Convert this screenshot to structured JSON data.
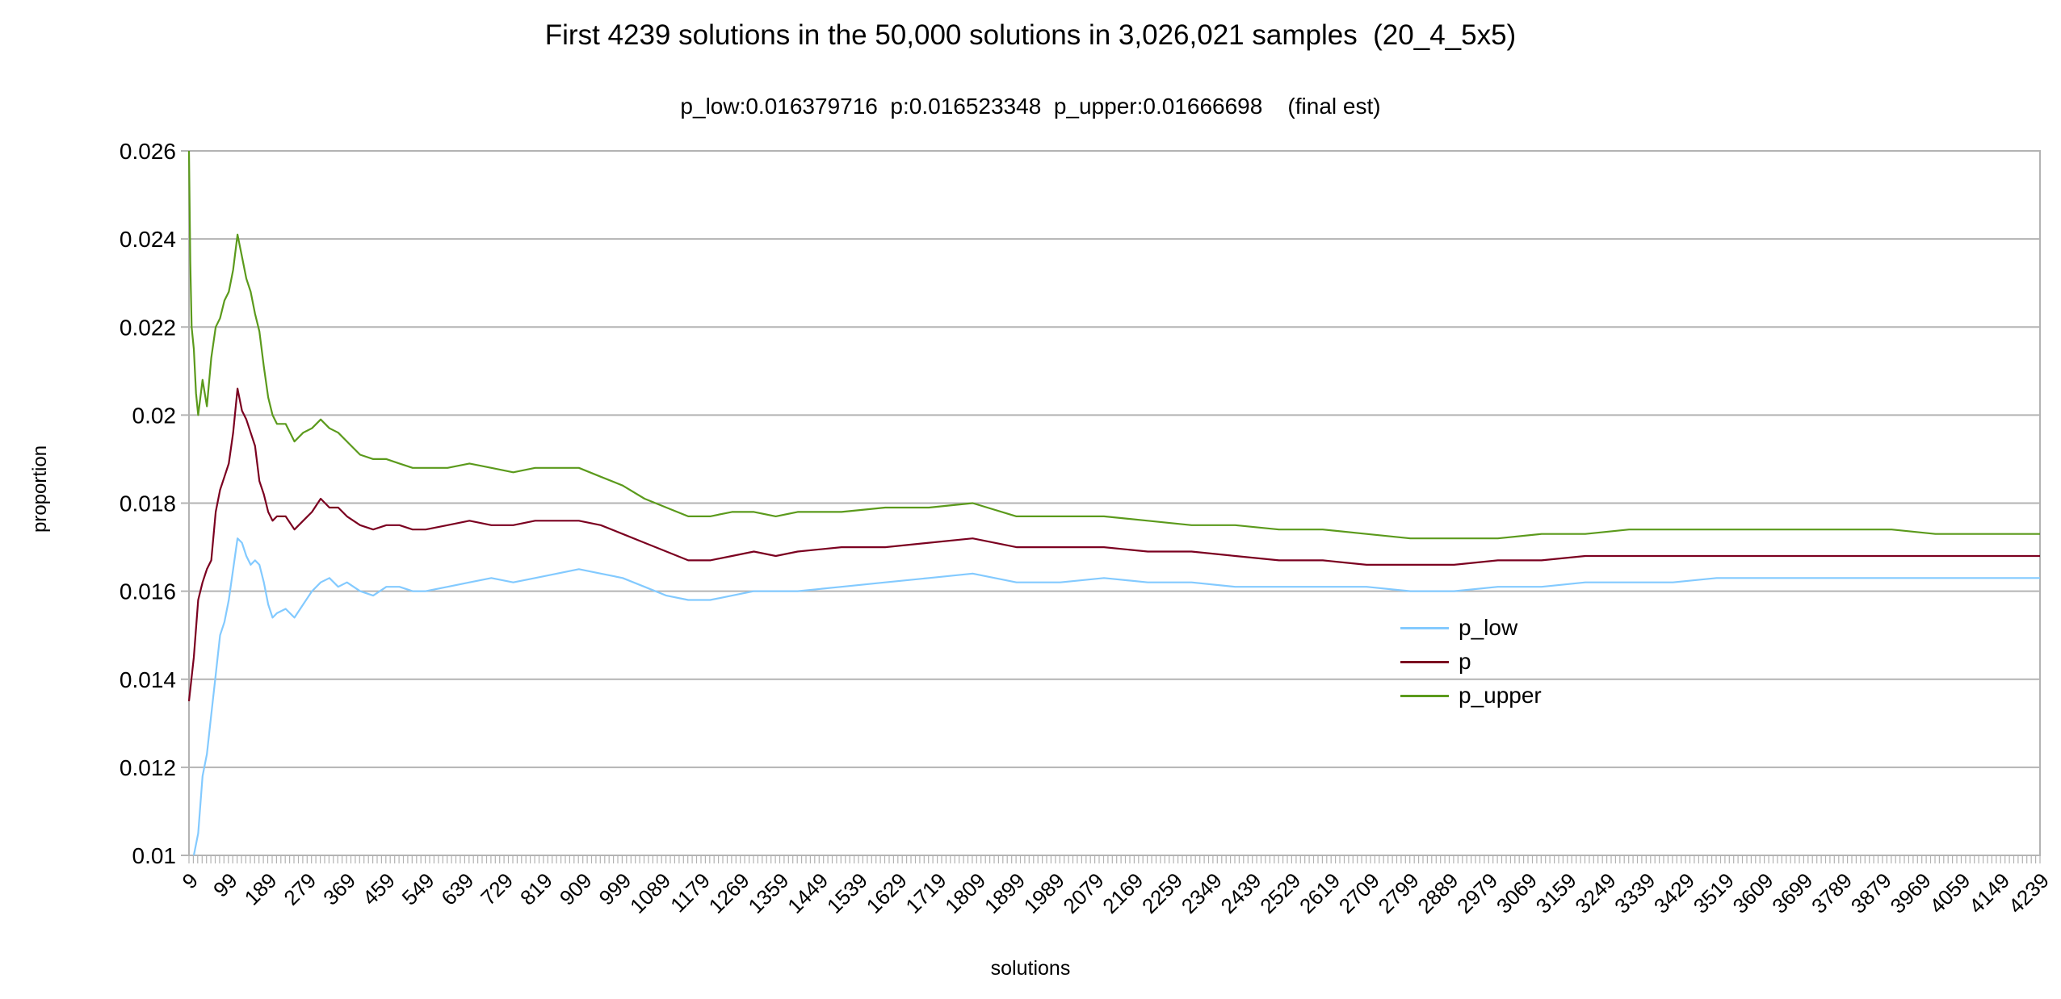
{
  "chart_data": {
    "type": "line",
    "title": "First 4239 solutions in the 50,000 solutions in 3,026,021 samples  (20_4_5x5)",
    "subtitle": "p_low:0.016379716  p:0.016523348  p_upper:0.01666698    (final est)",
    "xlabel": "solutions",
    "ylabel": "proportion",
    "ylim": [
      0.01,
      0.026
    ],
    "y_ticks": [
      "0.01",
      "0.012",
      "0.014",
      "0.016",
      "0.018",
      "0.02",
      "0.022",
      "0.024",
      "0.026"
    ],
    "xlim": [
      9,
      4239
    ],
    "x_tick_labels": [
      "9",
      "99",
      "189",
      "279",
      "369",
      "459",
      "549",
      "639",
      "729",
      "819",
      "909",
      "999",
      "1089",
      "1179",
      "1269",
      "1359",
      "1449",
      "1539",
      "1629",
      "1719",
      "1809",
      "1899",
      "1989",
      "2079",
      "2169",
      "2259",
      "2349",
      "2439",
      "2529",
      "2619",
      "2709",
      "2799",
      "2889",
      "2979",
      "3069",
      "3159",
      "3249",
      "3339",
      "3429",
      "3519",
      "3609",
      "3699",
      "3789",
      "3879",
      "3969",
      "4059",
      "4149",
      "4239"
    ],
    "grid": "horizontal",
    "legend_position": "right",
    "series": [
      {
        "name": "p_low",
        "color": "#83caff",
        "x": [
          20,
          30,
          40,
          50,
          60,
          70,
          80,
          90,
          100,
          110,
          120,
          130,
          140,
          150,
          160,
          170,
          180,
          190,
          200,
          210,
          230,
          250,
          270,
          290,
          310,
          330,
          350,
          370,
          400,
          430,
          460,
          490,
          520,
          550,
          600,
          650,
          700,
          750,
          800,
          850,
          900,
          950,
          1000,
          1050,
          1100,
          1150,
          1200,
          1250,
          1300,
          1350,
          1400,
          1500,
          1600,
          1700,
          1800,
          1900,
          2000,
          2100,
          2200,
          2300,
          2400,
          2500,
          2600,
          2700,
          2800,
          2900,
          3000,
          3100,
          3200,
          3300,
          3400,
          3500,
          3600,
          3700,
          3800,
          3900,
          4000,
          4100,
          4239
        ],
        "y": [
          0.01,
          0.0105,
          0.0118,
          0.0123,
          0.0132,
          0.0141,
          0.015,
          0.0153,
          0.0158,
          0.0165,
          0.0172,
          0.0171,
          0.0168,
          0.0166,
          0.0167,
          0.0166,
          0.0162,
          0.0157,
          0.0154,
          0.0155,
          0.0156,
          0.0154,
          0.0157,
          0.016,
          0.0162,
          0.0163,
          0.0161,
          0.0162,
          0.016,
          0.0159,
          0.0161,
          0.0161,
          0.016,
          0.016,
          0.0161,
          0.0162,
          0.0163,
          0.0162,
          0.0163,
          0.0164,
          0.0165,
          0.0164,
          0.0163,
          0.0161,
          0.0159,
          0.0158,
          0.0158,
          0.0159,
          0.016,
          0.016,
          0.016,
          0.0161,
          0.0162,
          0.0163,
          0.0164,
          0.0162,
          0.0162,
          0.0163,
          0.0162,
          0.0162,
          0.0161,
          0.0161,
          0.0161,
          0.0161,
          0.016,
          0.016,
          0.0161,
          0.0161,
          0.0162,
          0.0162,
          0.0162,
          0.0163,
          0.0163,
          0.0163,
          0.0163,
          0.0163,
          0.0163,
          0.0163,
          0.0163
        ]
      },
      {
        "name": "p",
        "color": "#7b0020",
        "x": [
          9,
          20,
          30,
          40,
          50,
          60,
          70,
          80,
          90,
          100,
          110,
          120,
          130,
          140,
          150,
          160,
          170,
          180,
          190,
          200,
          210,
          230,
          250,
          270,
          290,
          310,
          330,
          350,
          370,
          400,
          430,
          460,
          490,
          520,
          550,
          600,
          650,
          700,
          750,
          800,
          850,
          900,
          950,
          1000,
          1050,
          1100,
          1150,
          1200,
          1250,
          1300,
          1350,
          1400,
          1500,
          1600,
          1700,
          1800,
          1900,
          2000,
          2100,
          2200,
          2300,
          2400,
          2500,
          2600,
          2700,
          2800,
          2900,
          3000,
          3100,
          3200,
          3300,
          3400,
          3500,
          3600,
          3700,
          3800,
          3900,
          4000,
          4100,
          4239
        ],
        "y": [
          0.0135,
          0.0145,
          0.0158,
          0.0162,
          0.0165,
          0.0167,
          0.0178,
          0.0183,
          0.0186,
          0.0189,
          0.0196,
          0.0206,
          0.0201,
          0.0199,
          0.0196,
          0.0193,
          0.0185,
          0.0182,
          0.0178,
          0.0176,
          0.0177,
          0.0177,
          0.0174,
          0.0176,
          0.0178,
          0.0181,
          0.0179,
          0.0179,
          0.0177,
          0.0175,
          0.0174,
          0.0175,
          0.0175,
          0.0174,
          0.0174,
          0.0175,
          0.0176,
          0.0175,
          0.0175,
          0.0176,
          0.0176,
          0.0176,
          0.0175,
          0.0173,
          0.0171,
          0.0169,
          0.0167,
          0.0167,
          0.0168,
          0.0169,
          0.0168,
          0.0169,
          0.017,
          0.017,
          0.0171,
          0.0172,
          0.017,
          0.017,
          0.017,
          0.0169,
          0.0169,
          0.0168,
          0.0167,
          0.0167,
          0.0166,
          0.0166,
          0.0166,
          0.0167,
          0.0167,
          0.0168,
          0.0168,
          0.0168,
          0.0168,
          0.0168,
          0.0168,
          0.0168,
          0.0168,
          0.0168,
          0.0168,
          0.0168
        ]
      },
      {
        "name": "p_upper",
        "color": "#5b9a1c",
        "x": [
          9,
          12,
          15,
          20,
          25,
          30,
          40,
          50,
          60,
          70,
          80,
          90,
          100,
          110,
          120,
          130,
          140,
          150,
          160,
          170,
          180,
          190,
          200,
          210,
          230,
          250,
          270,
          290,
          310,
          330,
          350,
          370,
          400,
          430,
          460,
          490,
          520,
          550,
          600,
          650,
          700,
          750,
          800,
          850,
          900,
          950,
          1000,
          1050,
          1100,
          1150,
          1200,
          1250,
          1300,
          1350,
          1400,
          1500,
          1600,
          1700,
          1800,
          1900,
          2000,
          2100,
          2200,
          2300,
          2400,
          2500,
          2600,
          2700,
          2800,
          2900,
          3000,
          3100,
          3200,
          3300,
          3400,
          3500,
          3600,
          3700,
          3800,
          3900,
          4000,
          4100,
          4239
        ],
        "y": [
          0.026,
          0.0235,
          0.022,
          0.0215,
          0.0205,
          0.02,
          0.0208,
          0.0202,
          0.0213,
          0.022,
          0.0222,
          0.0226,
          0.0228,
          0.0233,
          0.0241,
          0.0236,
          0.0231,
          0.0228,
          0.0223,
          0.0219,
          0.0211,
          0.0204,
          0.02,
          0.0198,
          0.0198,
          0.0194,
          0.0196,
          0.0197,
          0.0199,
          0.0197,
          0.0196,
          0.0194,
          0.0191,
          0.019,
          0.019,
          0.0189,
          0.0188,
          0.0188,
          0.0188,
          0.0189,
          0.0188,
          0.0187,
          0.0188,
          0.0188,
          0.0188,
          0.0186,
          0.0184,
          0.0181,
          0.0179,
          0.0177,
          0.0177,
          0.0178,
          0.0178,
          0.0177,
          0.0178,
          0.0178,
          0.0179,
          0.0179,
          0.018,
          0.0177,
          0.0177,
          0.0177,
          0.0176,
          0.0175,
          0.0175,
          0.0174,
          0.0174,
          0.0173,
          0.0172,
          0.0172,
          0.0172,
          0.0173,
          0.0173,
          0.0174,
          0.0174,
          0.0174,
          0.0174,
          0.0174,
          0.0174,
          0.0174,
          0.0173,
          0.0173,
          0.0173
        ]
      }
    ]
  }
}
